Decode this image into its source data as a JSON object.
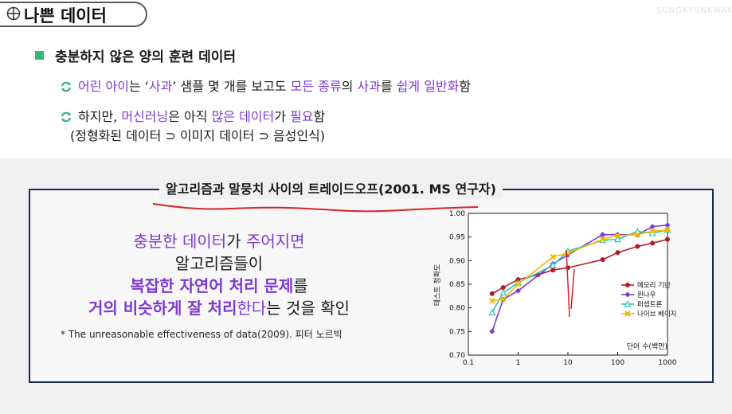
{
  "header": {
    "title": "나쁜 데이터",
    "icon": "crosshair-globe-icon",
    "watermark": "SUNGKYUNKWAN"
  },
  "bullet_main": "충분하지 않은 양의 훈련 데이터",
  "sub1": {
    "t1": "어린 아이",
    "t2": "는 ‘",
    "t3": "사과",
    "t4": "’ 샘플 몇 개",
    "t5": "를 보고도 ",
    "t6": "모든 종류",
    "t7": "의 ",
    "t8": "사과",
    "t9": "를 ",
    "t10": "쉽게 일반화",
    "t11": "함"
  },
  "sub2": {
    "t1": "하지만, ",
    "t2": "머신러닝",
    "t3": "은 아직 ",
    "t4": "많은 데이터",
    "t5": "가 ",
    "t6": "필요",
    "t7": "함",
    "line2": "(정형화된 데이터 ⊃ 이미지 데이터 ⊃ 음성인식)"
  },
  "box": {
    "title": "알고리즘과 말뭉치 사이의 트레이드오프(2001. MS 연구자)",
    "l1a": "충분한 데이터",
    "l1b": "가 ",
    "l1c": "주어지면",
    "l2": "알고리즘들이",
    "l3a": "복잡한 자연어 처리 문제",
    "l3b": "를",
    "l4a": "거의 비슷하게 잘 처리",
    "l4b": "한다",
    "l4c": "는 것을 확인",
    "citation": "* The unreasonable effectiveness of data(2009). 피터 노르빅"
  },
  "colors": {
    "purple": "#7b3bd0",
    "green": "#3bb47b",
    "navy": "#1e2a4a",
    "red_annotation": "#d4242a"
  },
  "chart_data": {
    "type": "line",
    "xscale": "log",
    "xlabel": "단어 수(백만)",
    "ylabel": "테스트 정확도",
    "x_ticks": [
      "0.1",
      "1",
      "10",
      "100",
      "1000"
    ],
    "y_ticks": [
      "0.70",
      "0.75",
      "0.80",
      "0.85",
      "0.90",
      "0.95",
      "1.00"
    ],
    "xlim": [
      0.1,
      1000
    ],
    "ylim": [
      0.7,
      1.0
    ],
    "legend_position": "right",
    "series": [
      {
        "name": "메모리 기반",
        "color": "#b01c24",
        "marker": "circle",
        "x": [
          0.3,
          0.5,
          1,
          2.5,
          5,
          10,
          50,
          100,
          250,
          500,
          1000
        ],
        "y": [
          0.83,
          0.843,
          0.86,
          0.87,
          0.88,
          0.885,
          0.902,
          0.917,
          0.93,
          0.937,
          0.945
        ]
      },
      {
        "name": "윈나우",
        "color": "#7b3bd0",
        "marker": "diamond",
        "x": [
          0.3,
          0.5,
          1,
          5,
          10,
          50,
          100,
          250,
          500,
          1000
        ],
        "y": [
          0.75,
          0.818,
          0.836,
          0.893,
          0.912,
          0.955,
          0.955,
          0.955,
          0.972,
          0.975
        ]
      },
      {
        "name": "퍼셉트론",
        "color": "#2ec4b6",
        "marker": "triangle",
        "x": [
          0.3,
          0.5,
          1,
          5,
          10,
          50,
          100,
          250,
          500,
          1000
        ],
        "y": [
          0.79,
          0.832,
          0.853,
          0.89,
          0.92,
          0.943,
          0.945,
          0.962,
          0.958,
          0.965
        ]
      },
      {
        "name": "나이브 베이지",
        "color": "#f5b800",
        "marker": "x",
        "x": [
          0.3,
          0.5,
          1,
          5,
          10,
          50,
          100,
          250,
          500,
          1000
        ],
        "y": [
          0.815,
          0.818,
          0.85,
          0.908,
          0.916,
          0.945,
          0.953,
          0.955,
          0.962,
          0.965
        ]
      }
    ]
  }
}
